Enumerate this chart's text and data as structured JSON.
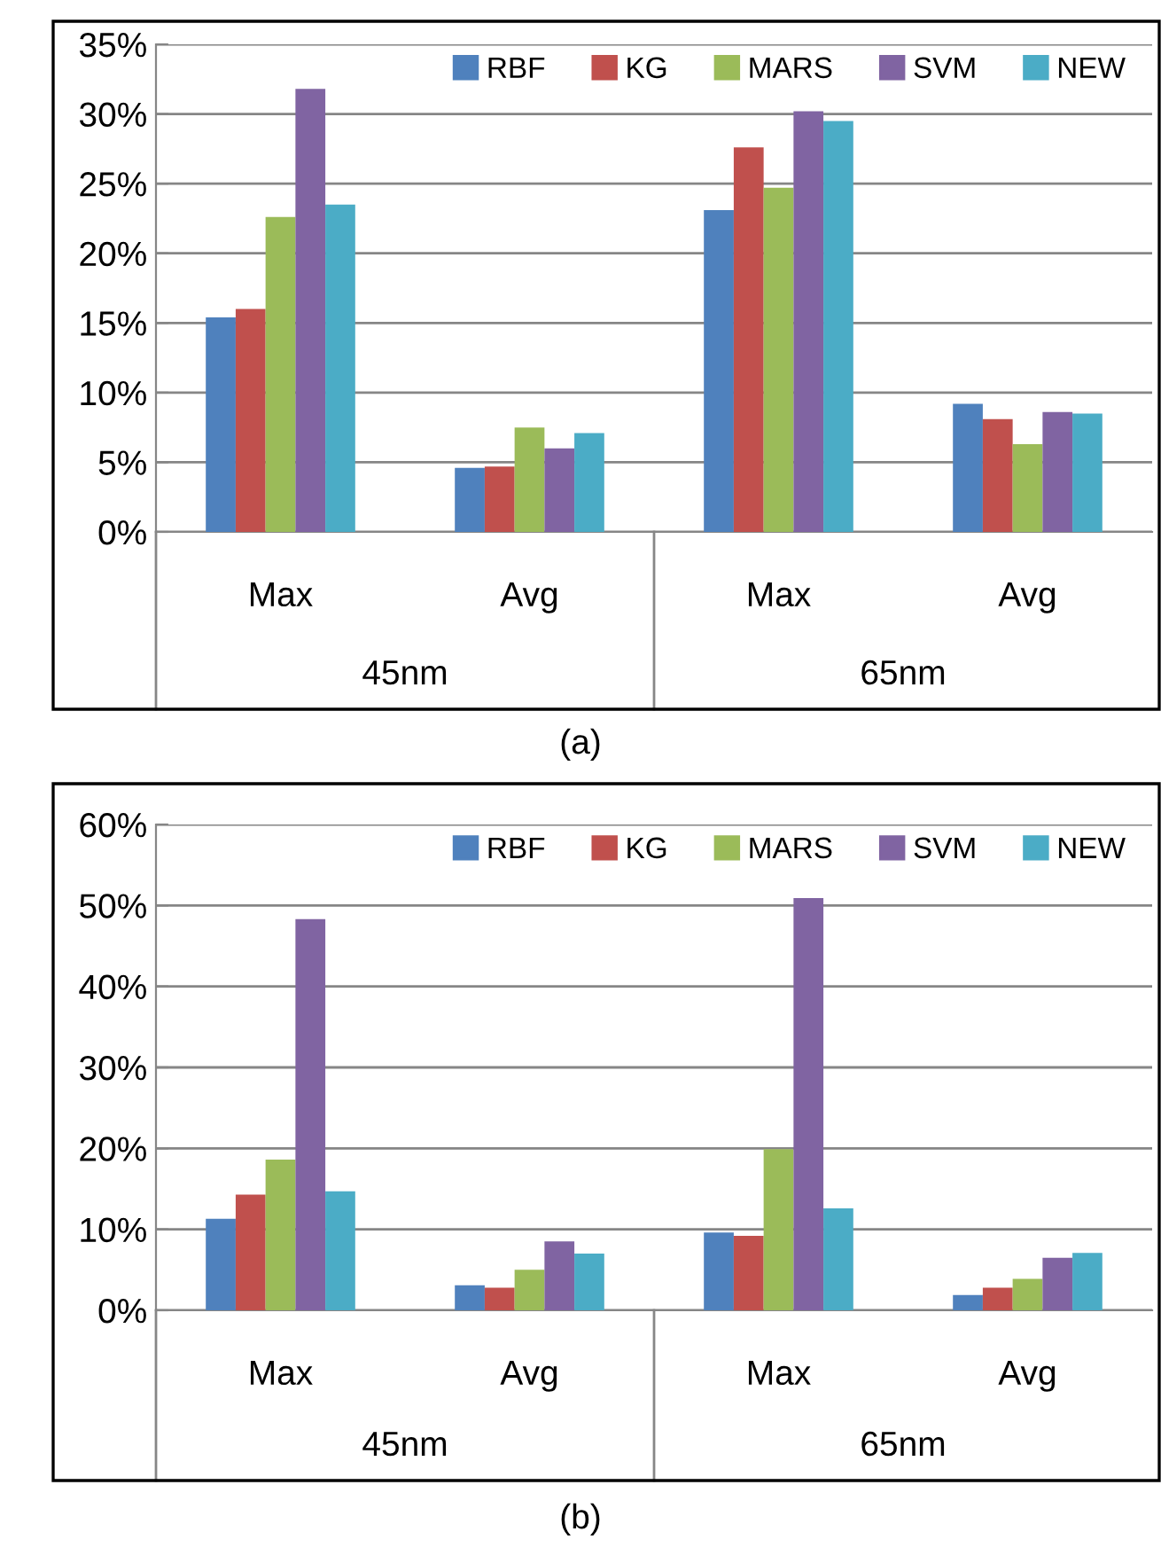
{
  "chart_data": [
    {
      "type": "bar",
      "categories": [
        "Max",
        "Avg",
        "Max",
        "Avg"
      ],
      "series": [
        {
          "name": "RBF",
          "color": "#4f81bd",
          "values": [
            15.4,
            4.6,
            23.1,
            9.2
          ]
        },
        {
          "name": "KG",
          "color": "#c0504d",
          "values": [
            16.0,
            4.7,
            27.6,
            8.1
          ]
        },
        {
          "name": "MARS",
          "color": "#9bbb59",
          "values": [
            22.6,
            7.5,
            24.7,
            6.3
          ]
        },
        {
          "name": "SVM",
          "color": "#8064a2",
          "values": [
            31.8,
            6.0,
            30.2,
            8.6
          ]
        },
        {
          "name": "NEW",
          "color": "#4bacc6",
          "values": [
            23.5,
            7.1,
            29.5,
            8.5
          ]
        }
      ],
      "ylim": [
        0,
        35
      ],
      "yticks": [
        {
          "value": 0,
          "label": "0%"
        },
        {
          "value": 5,
          "label": "5%"
        },
        {
          "value": 10,
          "label": "10%"
        },
        {
          "value": 15,
          "label": "15%"
        },
        {
          "value": 20,
          "label": "20%"
        },
        {
          "value": 25,
          "label": "25%"
        },
        {
          "value": 30,
          "label": "30%"
        },
        {
          "value": 35,
          "label": "35%"
        }
      ],
      "grid": "y",
      "legend": "top right",
      "annotations": [
        "45nm",
        "65nm",
        "(a)"
      ]
    },
    {
      "type": "bar",
      "categories": [
        "Max",
        "Avg",
        "Max",
        "Avg"
      ],
      "series": [
        {
          "name": "RBF",
          "color": "#4f81bd",
          "values": [
            11.3,
            3.1,
            9.6,
            1.9
          ]
        },
        {
          "name": "KG",
          "color": "#c0504d",
          "values": [
            14.3,
            2.8,
            9.2,
            2.8
          ]
        },
        {
          "name": "MARS",
          "color": "#9bbb59",
          "values": [
            18.6,
            5.0,
            19.9,
            3.9
          ]
        },
        {
          "name": "SVM",
          "color": "#8064a2",
          "values": [
            48.3,
            8.5,
            50.9,
            6.5
          ]
        },
        {
          "name": "NEW",
          "color": "#4bacc6",
          "values": [
            14.7,
            7.0,
            12.6,
            7.1
          ]
        }
      ],
      "ylim": [
        0,
        60
      ],
      "yticks": [
        {
          "value": 0,
          "label": "0%"
        },
        {
          "value": 10,
          "label": "10%"
        },
        {
          "value": 20,
          "label": "20%"
        },
        {
          "value": 30,
          "label": "30%"
        },
        {
          "value": 40,
          "label": "40%"
        },
        {
          "value": 50,
          "label": "50%"
        },
        {
          "value": 60,
          "label": "60%"
        }
      ],
      "grid": "y",
      "legend": "top right",
      "annotations": [
        "45nm",
        "65nm",
        "(b)"
      ]
    }
  ]
}
